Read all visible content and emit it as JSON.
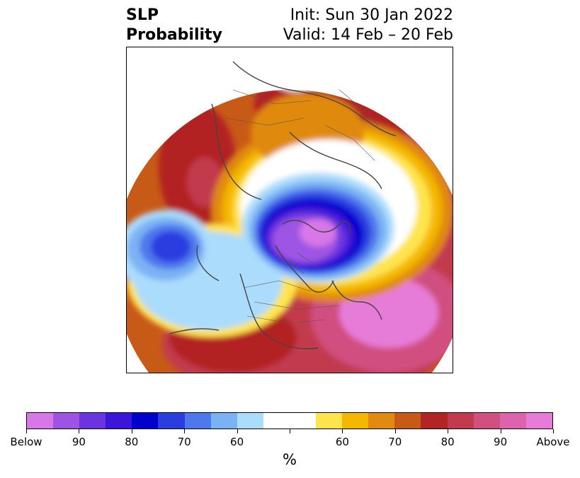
{
  "title": {
    "left_line1": "SLP",
    "left_line2": "Probability",
    "right_line1": "Init: Sun 30 Jan 2022",
    "right_line2": "Valid: 14 Feb – 20 Feb"
  },
  "map": {
    "projection": "polar stereographic (north pole)",
    "features": [
      "probability-shading",
      "coastlines",
      "country-borders"
    ]
  },
  "colorbar": {
    "unit": "%",
    "colors": [
      "#d877e8",
      "#9e54e3",
      "#6a35de",
      "#3c16d8",
      "#0000cd",
      "#2a3ee0",
      "#4f78ec",
      "#7bb2f4",
      "#acdcfc",
      "#ffffff",
      "#ffffff",
      "#ffe44d",
      "#f4b800",
      "#e08a10",
      "#c85a18",
      "#b32424",
      "#c23a4e",
      "#d05080",
      "#dc64ac",
      "#e77cd8"
    ],
    "labels": [
      {
        "text": "Below",
        "index": 0
      },
      {
        "text": "90",
        "index": 2
      },
      {
        "text": "80",
        "index": 4
      },
      {
        "text": "70",
        "index": 6
      },
      {
        "text": "60",
        "index": 8
      },
      {
        "text": "",
        "index": 10
      },
      {
        "text": "60",
        "index": 12
      },
      {
        "text": "70",
        "index": 14
      },
      {
        "text": "80",
        "index": 16
      },
      {
        "text": "90",
        "index": 18
      },
      {
        "text": "Above",
        "index": 20
      }
    ]
  }
}
